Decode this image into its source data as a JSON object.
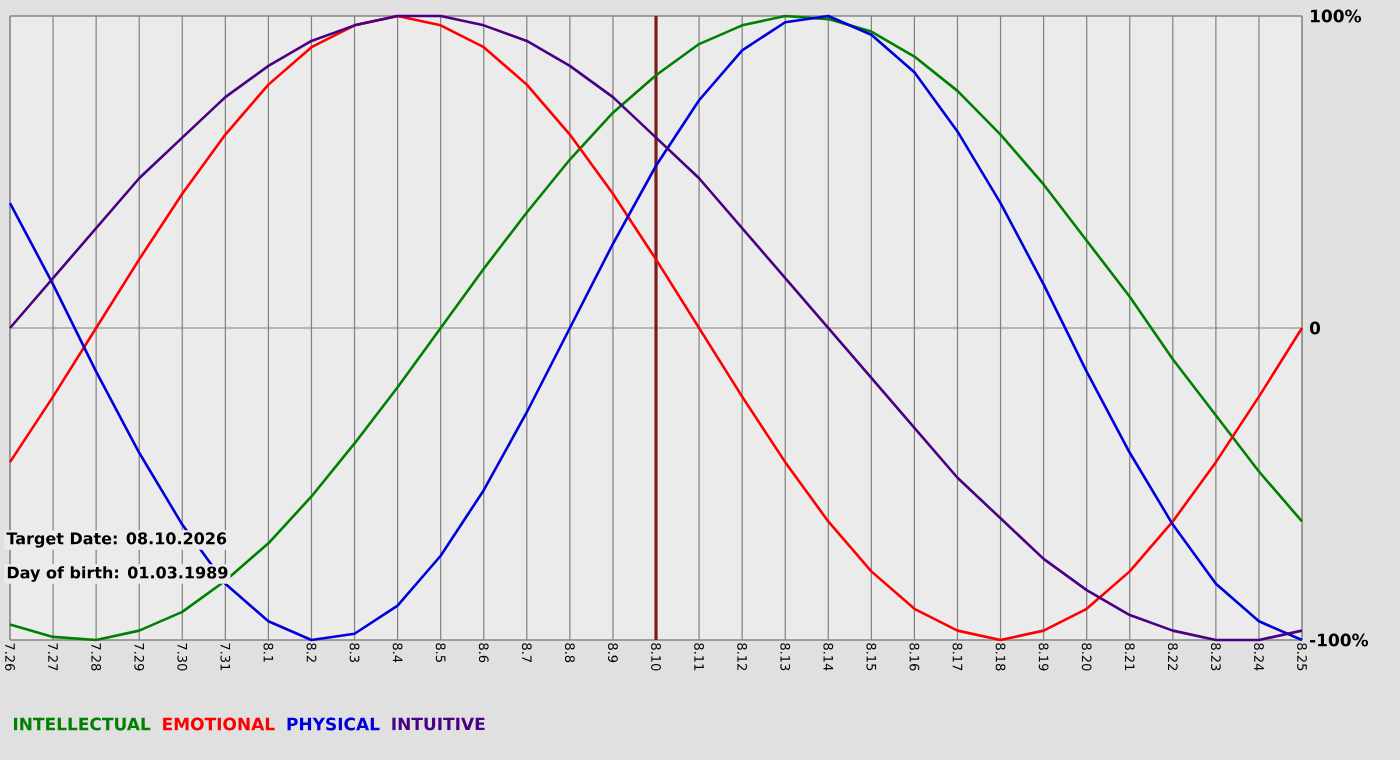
{
  "chart_data": {
    "type": "line",
    "categories": [
      "7.26",
      "7.27",
      "7.28",
      "7.29",
      "7.30",
      "7.31",
      "8.1",
      "8.2",
      "8.3",
      "8.4",
      "8.5",
      "8.6",
      "8.7",
      "8.8",
      "8.9",
      "8.10",
      "8.11",
      "8.12",
      "8.13",
      "8.14",
      "8.15",
      "8.16",
      "8.17",
      "8.18",
      "8.19",
      "8.20",
      "8.21",
      "8.22",
      "8.23",
      "8.24",
      "8.25"
    ],
    "series": [
      {
        "name": "INTELLECTUAL",
        "color": "#008000",
        "values": [
          -95,
          -99,
          -100,
          -97,
          -91,
          -81,
          -69,
          -54,
          -37,
          -19,
          0,
          19,
          37,
          54,
          69,
          81,
          91,
          97,
          100,
          99,
          95,
          87,
          76,
          62,
          46,
          28,
          10,
          -10,
          -28,
          -46,
          -62
        ]
      },
      {
        "name": "EMOTIONAL",
        "color": "#ff0000",
        "values": [
          -43,
          -22,
          0,
          22,
          43,
          62,
          78,
          90,
          97,
          100,
          97,
          90,
          78,
          62,
          43,
          22,
          0,
          -22,
          -43,
          -62,
          -78,
          -90,
          -97,
          -100,
          -97,
          -90,
          -78,
          -62,
          -43,
          -22,
          0
        ]
      },
      {
        "name": "PHYSICAL",
        "color": "#0000dd",
        "values": [
          40,
          14,
          -14,
          -40,
          -63,
          -82,
          -94,
          -100,
          -98,
          -89,
          -73,
          -52,
          -27,
          0,
          27,
          52,
          73,
          89,
          98,
          100,
          94,
          82,
          63,
          40,
          14,
          -14,
          -40,
          -63,
          -82,
          -94,
          -100
        ]
      },
      {
        "name": "INTUITIVE",
        "color": "#4b0082",
        "values": [
          0,
          16,
          32,
          48,
          61,
          74,
          84,
          92,
          97,
          100,
          100,
          97,
          92,
          84,
          74,
          61,
          48,
          32,
          16,
          0,
          -16,
          -32,
          -48,
          -61,
          -74,
          -84,
          -92,
          -97,
          -100,
          -100,
          -97
        ]
      }
    ],
    "ylim": [
      -100,
      100
    ],
    "yticks": [
      {
        "value": 100,
        "label": "100%"
      },
      0,
      {
        "value": -100,
        "label": "-100%"
      }
    ],
    "ref_lines": [
      {
        "axis": "x",
        "value": "8.10",
        "color": "#7a1c1c"
      }
    ],
    "annotations": [
      "Target Date: 08.10.2026",
      "Day of birth: 01.03.1989"
    ],
    "grid": true,
    "legend": "bottom",
    "marker": "none",
    "line_style": "solid"
  }
}
